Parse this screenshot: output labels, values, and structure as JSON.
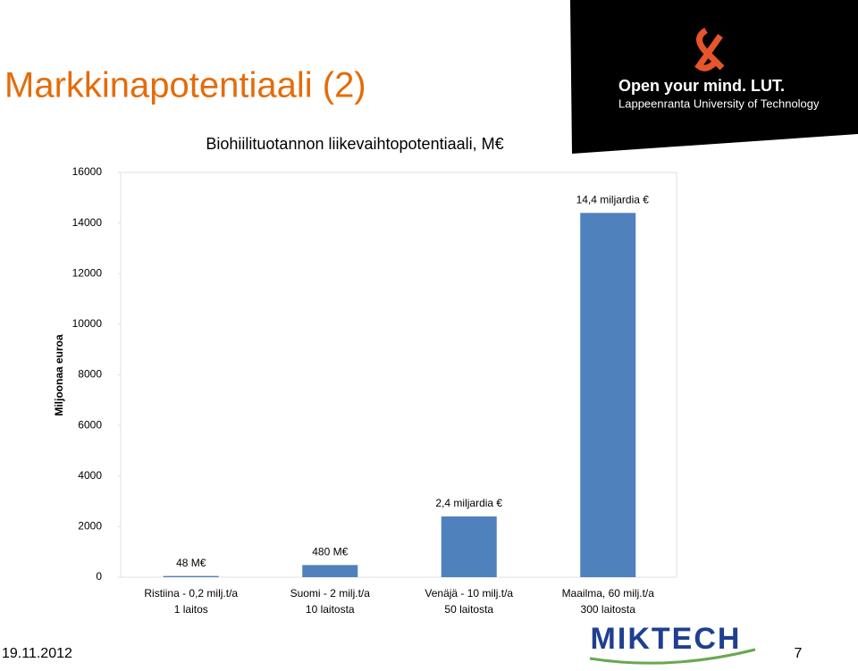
{
  "slide_title": "Markkinapotentiaali (2)",
  "footer": {
    "date": "19.11.2012",
    "page": "7",
    "logo": "MIKTECH"
  },
  "brand": {
    "line1": "Open your mind. LUT.",
    "line2": "Lappeenranta University of Technology"
  },
  "chart_data": {
    "type": "bar",
    "title": "Biohiilituotannon liikevaihtopotentiaali, M€",
    "y_label": "Miljoonaa euroa",
    "categories": [
      [
        "Ristiina - 0,2 milj.t/a",
        "1 laitos"
      ],
      [
        "Suomi - 2 milj.t/a",
        "10 laitosta"
      ],
      [
        "Venäjä - 10 milj.t/a",
        "50 laitosta"
      ],
      [
        "Maailma, 60 milj.t/a",
        "300 laitosta"
      ]
    ],
    "values": [
      48,
      480,
      2400,
      14400
    ],
    "value_labels": [
      "48 M€",
      "480 M€",
      "2,4 miljardia €",
      "14,4 miljardia €"
    ],
    "color": "#4f81bd",
    "ylim": [
      0,
      16000
    ],
    "yticks": [
      0,
      2000,
      4000,
      6000,
      8000,
      10000,
      12000,
      14000,
      16000
    ],
    "grid": false
  }
}
